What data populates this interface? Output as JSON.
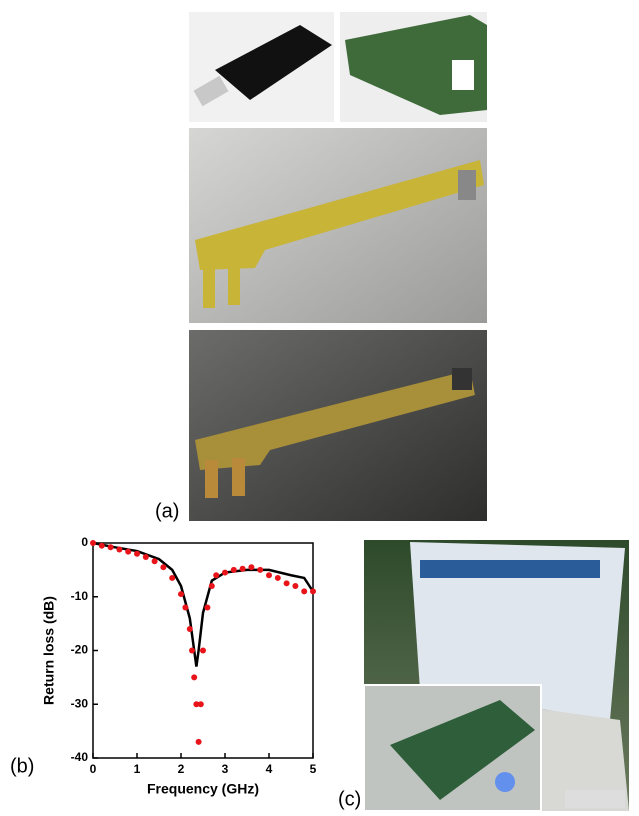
{
  "panel_labels": {
    "a": "(a)",
    "b": "(b)",
    "c": "(c)"
  },
  "chart_data": {
    "type": "line",
    "xlabel": "Frequency (GHz)",
    "ylabel": "Return loss (dB)",
    "xlim": [
      0,
      5
    ],
    "xticks": [
      0,
      1,
      2,
      3,
      4,
      5
    ],
    "ylim": [
      -40,
      0
    ],
    "yticks": [
      0,
      -10,
      -20,
      -30,
      -40
    ],
    "series": [
      {
        "color": "#000000",
        "mode": "line",
        "x": [
          0,
          0.5,
          1.0,
          1.5,
          1.8,
          2.0,
          2.2,
          2.3,
          2.35,
          2.4,
          2.5,
          2.7,
          3.0,
          3.5,
          4.0,
          4.5,
          4.8,
          5.0
        ],
        "values": [
          0,
          -0.8,
          -1.5,
          -3,
          -5,
          -8,
          -14,
          -20,
          -23,
          -20,
          -13,
          -7,
          -5.5,
          -5,
          -5,
          -6,
          -6.5,
          -9
        ]
      },
      {
        "color": "#e8141a",
        "mode": "markers",
        "x": [
          0,
          0.2,
          0.4,
          0.6,
          0.8,
          1.0,
          1.2,
          1.4,
          1.6,
          1.8,
          2.0,
          2.1,
          2.2,
          2.25,
          2.3,
          2.35,
          2.4,
          2.45,
          2.5,
          2.6,
          2.7,
          2.8,
          3.0,
          3.2,
          3.4,
          3.6,
          3.8,
          4.0,
          4.2,
          4.4,
          4.6,
          4.8,
          5.0
        ],
        "values": [
          0,
          -0.5,
          -0.8,
          -1.2,
          -1.6,
          -2,
          -2.6,
          -3.4,
          -4.5,
          -6.5,
          -9.5,
          -12,
          -16,
          -20,
          -25,
          -30,
          -37,
          -30,
          -20,
          -12,
          -8,
          -6,
          -5.5,
          -5,
          -4.8,
          -4.5,
          -5,
          -6,
          -6.5,
          -7.5,
          -8,
          -9,
          -9
        ]
      }
    ]
  }
}
